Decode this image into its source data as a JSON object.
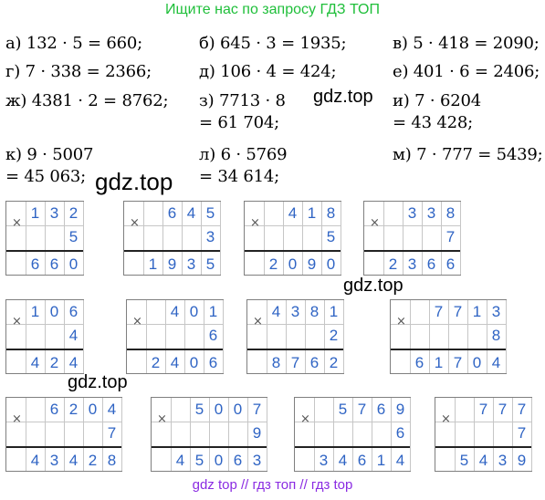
{
  "header": "Ищите нас по запросу ГДЗ ТОП",
  "equations": [
    "а) 132 · 5 = 660;",
    "б) 645 · 3 = 1935;",
    "в) 5 · 418 = 2090;",
    "г) 7 · 338 = 2366;",
    "д) 106 · 4 = 424;",
    "е) 401 · 6 = 2406;",
    "ж) 4381 · 2 = 8762;",
    "з) 7713 · 8",
    "= 61 704;",
    "и) 7 · 6204",
    "= 43 428;",
    "к) 9 · 5007",
    "= 45 063;",
    "л) 6 · 5769",
    "= 34 614;",
    "м) 7 · 777 = 5439;"
  ],
  "watermarks": [
    "gdz.top",
    "gdz.top",
    "gdz.top",
    "gdz.top"
  ],
  "footer": "gdz top  //  гдз топ  //  гдз top",
  "colors": {
    "header": "#1fbf3a",
    "footer": "#8a2be2",
    "digits": "#2f64c4"
  },
  "multiplications": [
    {
      "a": "132",
      "b": "5",
      "r": "660"
    },
    {
      "a": "645",
      "b": "3",
      "r": "1935"
    },
    {
      "a": "418",
      "b": "5",
      "r": "2090"
    },
    {
      "a": "338",
      "b": "7",
      "r": "2366"
    },
    {
      "a": "106",
      "b": "4",
      "r": "424"
    },
    {
      "a": "401",
      "b": "6",
      "r": "2406"
    },
    {
      "a": "4381",
      "b": "2",
      "r": "8762"
    },
    {
      "a": "7713",
      "b": "8",
      "r": "61704"
    },
    {
      "a": "6204",
      "b": "7",
      "r": "43428"
    },
    {
      "a": "5007",
      "b": "9",
      "r": "45063"
    },
    {
      "a": "5769",
      "b": "6",
      "r": "34614"
    },
    {
      "a": "777",
      "b": "7",
      "r": "5439"
    }
  ],
  "times_sign": "×"
}
